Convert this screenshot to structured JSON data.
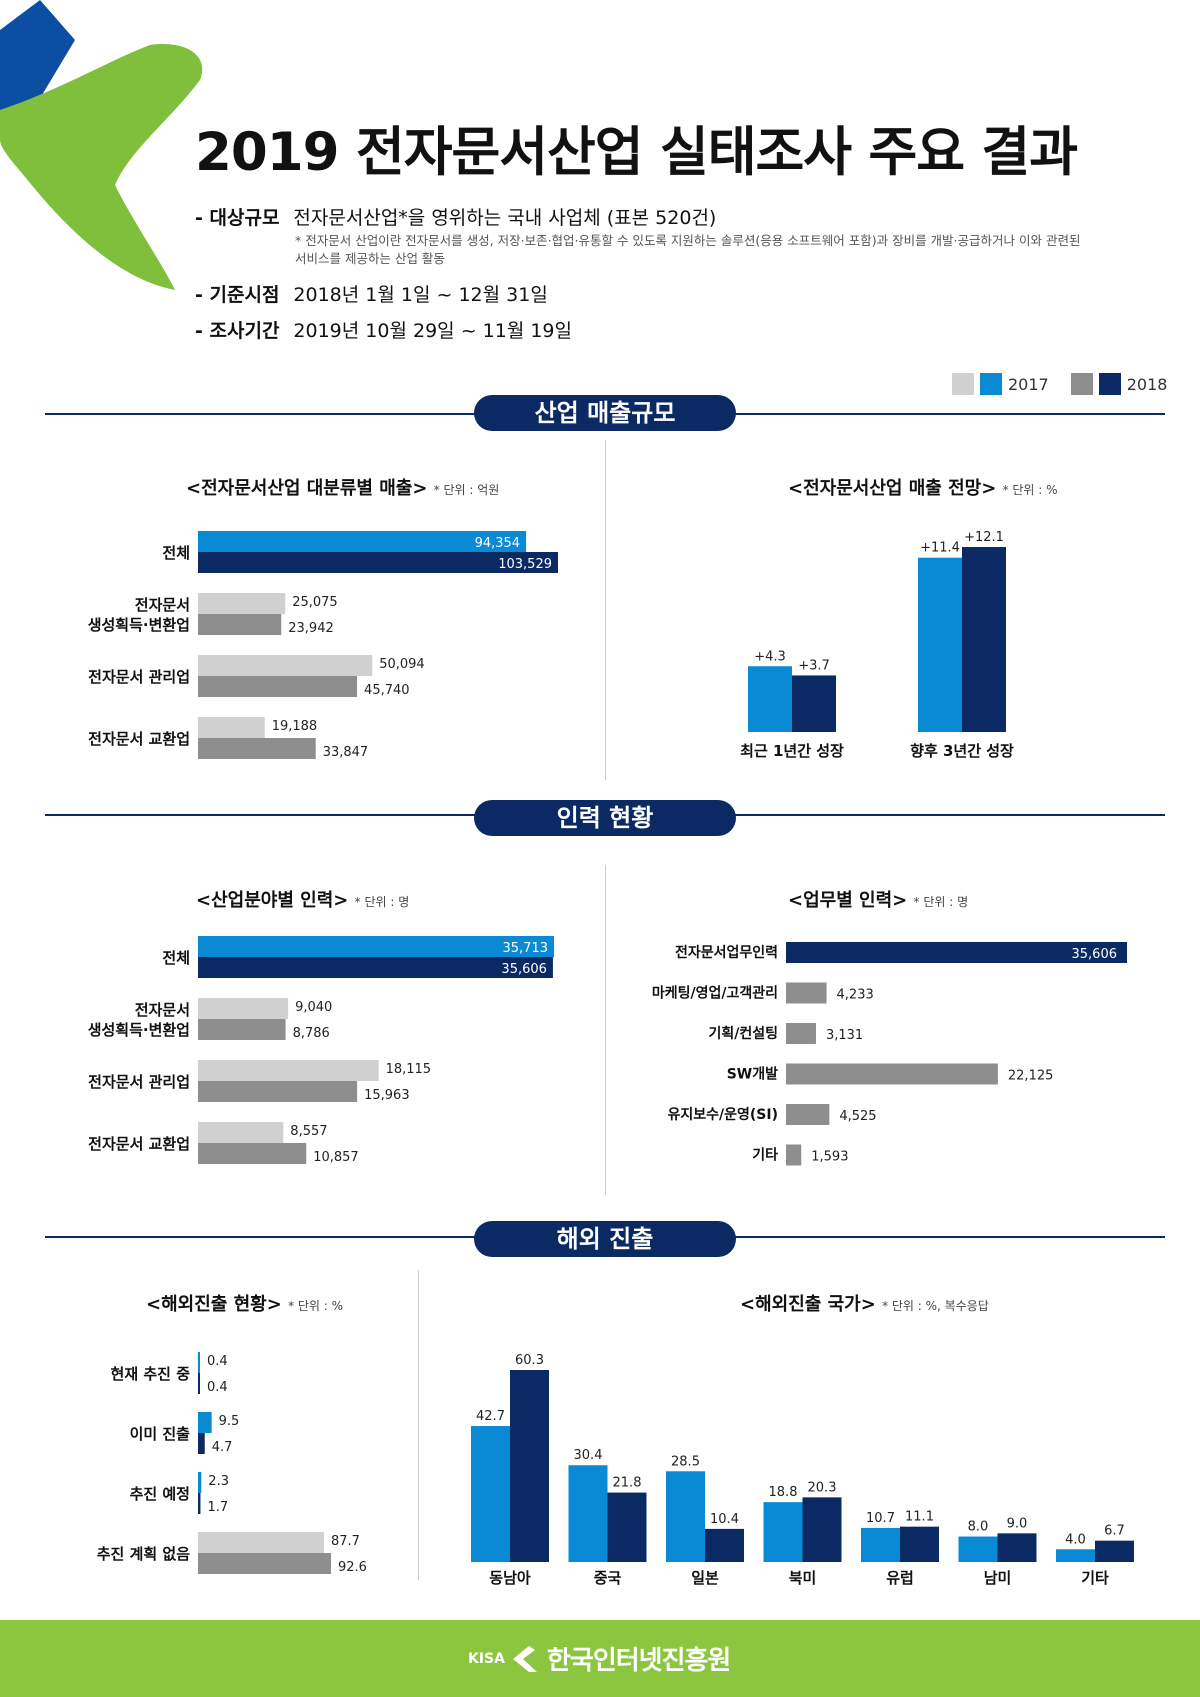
{
  "title": "2019 전자문서산업 실태조사 주요 결과",
  "meta": [
    {
      "key": "- 대상규모",
      "value": "전자문서산업*을 영위하는 국내 사업체 (표본 520건)"
    },
    {
      "key": "- 기준시점",
      "value": "2018년 1월 1일 ~ 12월 31일"
    },
    {
      "key": "- 조사기간",
      "value": "2019년 10월 29일 ~ 11월 19일"
    }
  ],
  "meta_note": "* 전자문서 산업이란 전자문서를 생성, 저장·보존·협업·유통할 수 있도록 지원하는 솔루션(응용 소프트웨어 포함)과 장비를 개발·공급하거나 이와 관련된 서비스를 제공하는 산업 활동",
  "legend": {
    "y2017": "2017",
    "y2018": "2018"
  },
  "colors": {
    "blue": "#0a8ad4",
    "navy": "#0b2a63",
    "lightgray": "#d0d0d0",
    "gray": "#8e8e8e",
    "green": "#8cc63e"
  },
  "sections": {
    "s1": "산업 매출규모",
    "s2": "인력 현황",
    "s3": "해외 진출"
  },
  "footer": {
    "kisa": "KISA",
    "org": "한국인터넷진흥원"
  },
  "chart_data": [
    {
      "id": "revenue",
      "type": "bar",
      "orientation": "horizontal",
      "title": "<전자문서산업 대분류별 매출>",
      "unit": "* 단위 : 억원",
      "categories": [
        "전체",
        "전자문서\n생성획득·변환업",
        "전자문서 관리업",
        "전자문서 교환업"
      ],
      "series": [
        {
          "name": "2017",
          "values": [
            94354,
            25075,
            50094,
            19188
          ]
        },
        {
          "name": "2018",
          "values": [
            103529,
            23942,
            45740,
            33847
          ]
        }
      ],
      "labels": [
        [
          "94,354",
          "25,075",
          "50,094",
          "19,188"
        ],
        [
          "103,529",
          "23,942",
          "45,740",
          "33,847"
        ]
      ]
    },
    {
      "id": "outlook",
      "type": "bar",
      "title": "<전자문서산업 매출 전망>",
      "unit": "* 단위 : %",
      "categories": [
        "최근 1년간 성장",
        "향후 3년간 성장"
      ],
      "series": [
        {
          "name": "2017",
          "values": [
            4.3,
            11.4
          ]
        },
        {
          "name": "2018",
          "values": [
            3.7,
            12.1
          ]
        }
      ],
      "labels": [
        [
          "+4.3",
          "+11.4"
        ],
        [
          "+3.7",
          "+12.1"
        ]
      ]
    },
    {
      "id": "workforce_field",
      "type": "bar",
      "orientation": "horizontal",
      "title": "<산업분야별 인력>",
      "unit": "* 단위 : 명",
      "categories": [
        "전체",
        "전자문서\n생성획득·변환업",
        "전자문서 관리업",
        "전자문서 교환업"
      ],
      "series": [
        {
          "name": "2017",
          "values": [
            35713,
            9040,
            18115,
            8557
          ]
        },
        {
          "name": "2018",
          "values": [
            35606,
            8786,
            15963,
            10857
          ]
        }
      ],
      "labels": [
        [
          "35,713",
          "9,040",
          "18,115",
          "8,557"
        ],
        [
          "35,606",
          "8,786",
          "15,963",
          "10,857"
        ]
      ]
    },
    {
      "id": "workforce_task",
      "type": "bar",
      "orientation": "horizontal",
      "title": "<업무별 인력>",
      "unit": "* 단위 : 명",
      "categories": [
        "전자문서업무인력",
        "마케팅/영업/고객관리",
        "기획/컨설팅",
        "SW개발",
        "유지보수/운영(SI)",
        "기타"
      ],
      "values": [
        35606,
        4233,
        3131,
        22125,
        4525,
        1593
      ],
      "labels": [
        "35,606",
        "4,233",
        "3,131",
        "22,125",
        "4,525",
        "1,593"
      ]
    },
    {
      "id": "overseas_status",
      "type": "bar",
      "orientation": "horizontal",
      "title": "<해외진출 현황>",
      "unit": "* 단위 : %",
      "categories": [
        "현재 추진 중",
        "이미 진출",
        "추진 예정",
        "추진 계획 없음"
      ],
      "series": [
        {
          "name": "2017",
          "values": [
            0.4,
            9.5,
            2.3,
            87.7
          ]
        },
        {
          "name": "2018",
          "values": [
            0.4,
            4.7,
            1.7,
            92.6
          ]
        }
      ],
      "labels": [
        [
          "0.4",
          "9.5",
          "2.3",
          "87.7"
        ],
        [
          "0.4",
          "4.7",
          "1.7",
          "92.6"
        ]
      ]
    },
    {
      "id": "overseas_country",
      "type": "bar",
      "title": "<해외진출 국가>",
      "unit": "* 단위 : %, 복수응답",
      "categories": [
        "동남아",
        "중국",
        "일본",
        "북미",
        "유럽",
        "남미",
        "기타"
      ],
      "series": [
        {
          "name": "2017",
          "values": [
            42.7,
            30.4,
            28.5,
            18.8,
            10.7,
            8.0,
            4.0
          ]
        },
        {
          "name": "2018",
          "values": [
            60.3,
            21.8,
            10.4,
            20.3,
            11.1,
            9.0,
            6.7
          ]
        }
      ],
      "labels": [
        [
          "42.7",
          "30.4",
          "28.5",
          "18.8",
          "10.7",
          "8.0",
          "4.0"
        ],
        [
          "60.3",
          "21.8",
          "10.4",
          "20.3",
          "11.1",
          "9.0",
          "6.7"
        ]
      ]
    }
  ]
}
